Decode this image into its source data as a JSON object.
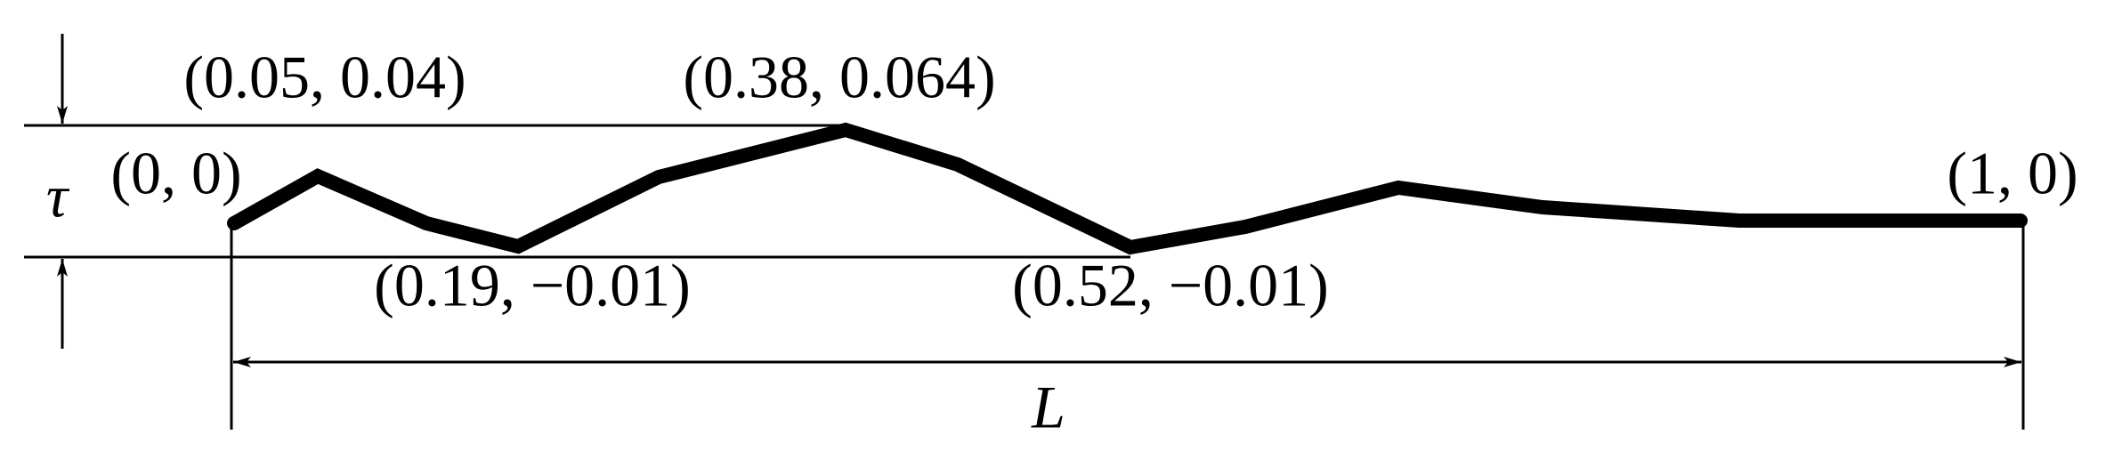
{
  "labels": {
    "tau": "τ",
    "length": "L",
    "points": [
      "(0, 0)",
      "(0.05, 0.04)",
      "(0.19, −0.01)",
      "(0.38, 0.064)",
      "(0.52, −0.01)",
      "(1, 0)"
    ]
  }
}
